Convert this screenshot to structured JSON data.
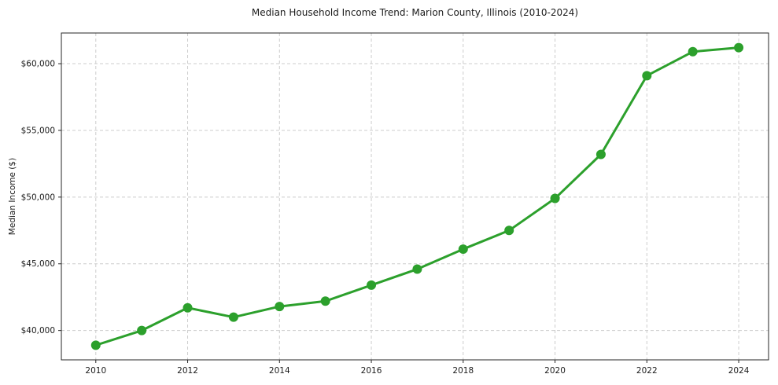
{
  "figure": {
    "background_color": "#ffffff"
  },
  "chart_data": {
    "type": "line",
    "title": "Median Household Income Trend: Marion County, Illinois (2010-2024)",
    "xlabel": "",
    "ylabel": "Median Income ($)",
    "series": [
      {
        "name": "Median household income",
        "x": [
          2010,
          2011,
          2012,
          2013,
          2014,
          2015,
          2016,
          2017,
          2018,
          2019,
          2020,
          2021,
          2022,
          2023,
          2024
        ],
        "values": [
          38900,
          40000,
          41700,
          41000,
          41800,
          42200,
          43400,
          44600,
          46100,
          47500,
          49900,
          53200,
          59100,
          60900,
          61200
        ]
      }
    ],
    "x_ticks": [
      2010,
      2012,
      2014,
      2016,
      2018,
      2020,
      2022,
      2024
    ],
    "y_ticks": [
      40000,
      45000,
      50000,
      55000,
      60000
    ],
    "y_tick_labels": [
      "$40,000",
      "$45,000",
      "$50,000",
      "$55,000",
      "$60,000"
    ],
    "xlim": [
      2009.25,
      2024.65
    ],
    "ylim": [
      37800,
      62300
    ],
    "grid": true,
    "legend": "none",
    "line_color": "#2ca02c",
    "marker": "circle",
    "grid_color": "#cccccc",
    "spine_color": "#262626",
    "text_color": "#1a1a1a"
  }
}
